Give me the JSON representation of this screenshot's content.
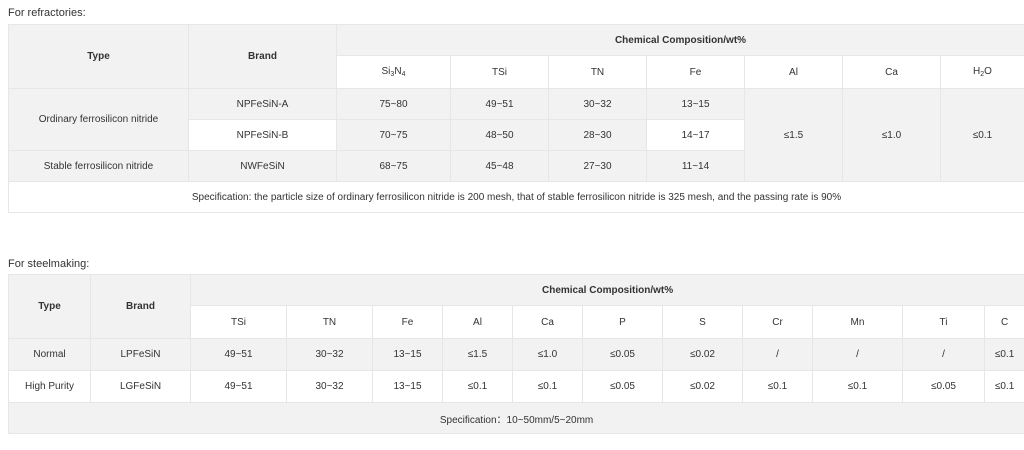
{
  "refractories": {
    "caption": "For refractories:",
    "header": {
      "type": "Type",
      "brand": "Brand",
      "composition": "Chemical Composition/wt%"
    },
    "columns": {
      "si3n4": {
        "base1": "Si",
        "sub1": "3",
        "base2": "N",
        "sub2": "4"
      },
      "tsi": "TSi",
      "tn": "TN",
      "fe": "Fe",
      "al": "Al",
      "ca": "Ca",
      "h2o": {
        "base1": "H",
        "sub1": "2",
        "base2": "O"
      }
    },
    "types": [
      "Ordinary ferrosilicon nitride",
      "Stable ferrosilicon nitride"
    ],
    "rows": [
      {
        "brand": "NPFeSiN-A",
        "si3n4": "75~80",
        "tsi": "49~51",
        "tn": "30~32",
        "fe": "13~15"
      },
      {
        "brand": "NPFeSiN-B",
        "si3n4": "70~75",
        "tsi": "48~50",
        "tn": "28~30",
        "fe": "14~17"
      },
      {
        "brand": "NWFeSiN",
        "si3n4": "68~75",
        "tsi": "45~48",
        "tn": "27~30",
        "fe": "11~14"
      }
    ],
    "shared": {
      "al": "≤1.5",
      "ca": "≤1.0",
      "h2o": "≤0.1"
    },
    "spec": "Specification: the particle size of ordinary ferrosilicon nitride is 200 mesh, that of stable ferrosilicon nitride is 325 mesh, and the passing rate is 90%"
  },
  "steelmaking": {
    "caption": "For steelmaking:",
    "header": {
      "type": "Type",
      "brand": "Brand",
      "composition": "Chemical Composition/wt%"
    },
    "columns": [
      "TSi",
      "TN",
      "Fe",
      "Al",
      "Ca",
      "P",
      "S",
      "Cr",
      "Mn",
      "Ti",
      "C"
    ],
    "rows": [
      {
        "type": "Normal",
        "brand": "LPFeSiN",
        "values": [
          "49~51",
          "30~32",
          "13~15",
          "≤1.5",
          "≤1.0",
          "≤0.05",
          "≤0.02",
          "/",
          "/",
          "/",
          "≤0.1"
        ]
      },
      {
        "type": "High Purity",
        "brand": "LGFeSiN",
        "values": [
          "49~51",
          "30~32",
          "13~15",
          "≤0.1",
          "≤0.1",
          "≤0.05",
          "≤0.02",
          "≤0.1",
          "≤0.1",
          "≤0.05",
          "≤0.1"
        ]
      }
    ],
    "spec": "Specification：10~50mm/5~20mm"
  }
}
